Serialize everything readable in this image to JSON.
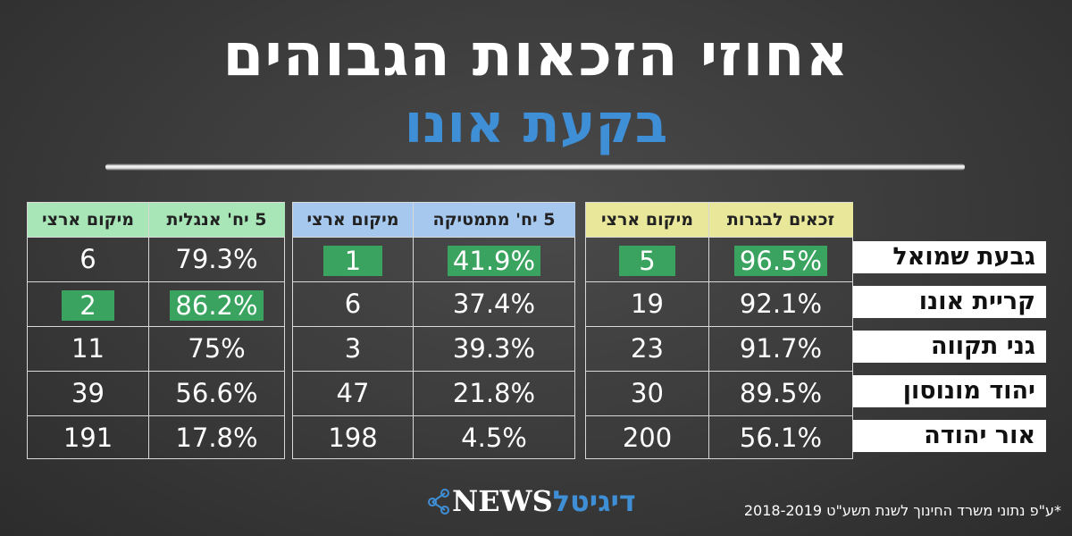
{
  "title": "אחוזי הזכאות הגבוהים",
  "subtitle": "בקעת אונו",
  "colors": {
    "background": "#3a3a3a",
    "accent_blue": "#3f8fd6",
    "highlight_green": "#3aa35f",
    "header_green": "#a8e6b8",
    "header_blue": "#a6c8ee",
    "header_yellow": "#e8e79a"
  },
  "groups": {
    "bagrut": {
      "value_label": "זכאים לבגרות",
      "rank_label": "מיקום ארצי"
    },
    "math": {
      "value_label": "5 יח' מתמטיקה",
      "rank_label": "מיקום ארצי"
    },
    "english": {
      "value_label": "5 יח' אנגלית",
      "rank_label": "מיקום ארצי"
    }
  },
  "towns": [
    {
      "name": "גבעת שמואל",
      "bagrut": "96.5%",
      "bagrut_rank": "5",
      "math": "41.9%",
      "math_rank": "1",
      "english": "79.3%",
      "english_rank": "6"
    },
    {
      "name": "קריית אונו",
      "bagrut": "92.1%",
      "bagrut_rank": "19",
      "math": "37.4%",
      "math_rank": "6",
      "english": "86.2%",
      "english_rank": "2"
    },
    {
      "name": "גני תקווה",
      "bagrut": "91.7%",
      "bagrut_rank": "23",
      "math": "39.3%",
      "math_rank": "3",
      "english": "75%",
      "english_rank": "11"
    },
    {
      "name": "יהוד מונוסון",
      "bagrut": "89.5%",
      "bagrut_rank": "30",
      "math": "21.8%",
      "math_rank": "47",
      "english": "56.6%",
      "english_rank": "39"
    },
    {
      "name": "אור יהודה",
      "bagrut": "56.1%",
      "bagrut_rank": "200",
      "math": "4.5%",
      "math_rank": "198",
      "english": "17.8%",
      "english_rank": "191"
    }
  ],
  "logo": {
    "hebrew": "דיגיטל",
    "latin": "NEWS",
    "icon": "network-nodes-icon"
  },
  "footnote": "*ע\"פ נתוני משרד החינוך לשנת תשע\"ט 2018-2019"
}
